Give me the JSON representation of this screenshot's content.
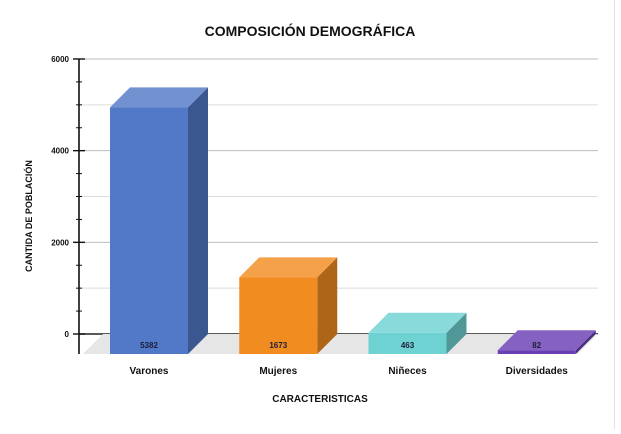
{
  "chart_data": {
    "type": "bar",
    "title": "COMPOSICIÓN DEMOGRÁFICA",
    "xlabel": "CARACTERISTICAS",
    "ylabel": "CANTIDA DE POBLACIÓN",
    "categories": [
      "Varones",
      "Mujeres",
      "Niñeces",
      "Diversidades"
    ],
    "values": [
      5382,
      1673,
      463,
      82
    ],
    "value_labels": [
      "5382",
      "1673",
      "463",
      "82"
    ],
    "colors": [
      "#5279c7",
      "#f18c21",
      "#6fd2d2",
      "#6a3fb3"
    ],
    "ylim": [
      0,
      6000
    ],
    "yticks": [
      0,
      2000,
      4000,
      6000
    ],
    "grid": true,
    "legend": "none"
  }
}
